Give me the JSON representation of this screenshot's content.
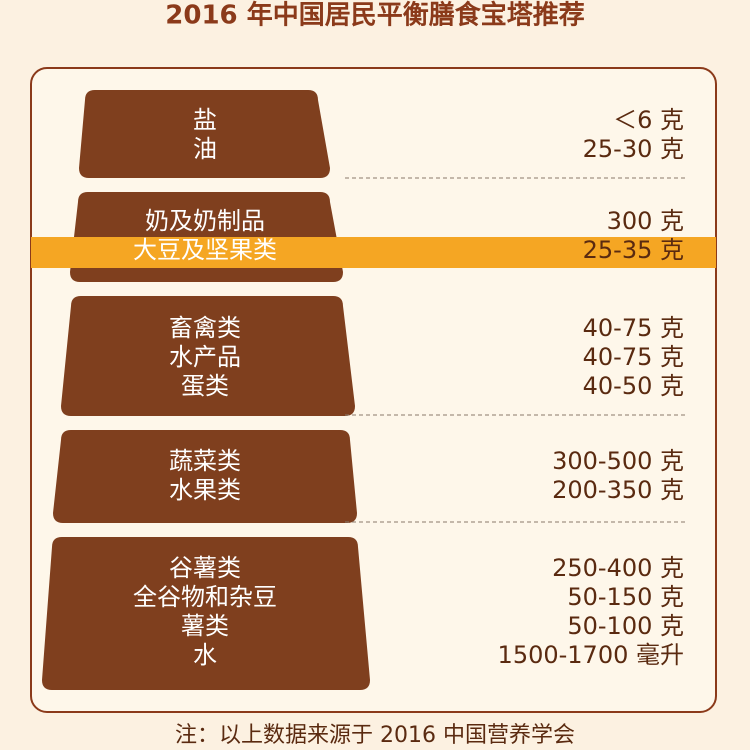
{
  "title": "2016 年中国居民平衡膳食宝塔推荐",
  "tiers": [
    {
      "items": [
        {
          "name": "盐",
          "amount": "＜6 克"
        },
        {
          "name": "油",
          "amount": "25-30 克"
        }
      ]
    },
    {
      "items": [
        {
          "name": "奶及奶制品",
          "amount": "300 克"
        },
        {
          "name": "大豆及坚果类",
          "amount": "25-35 克"
        }
      ]
    },
    {
      "items": [
        {
          "name": "畜禽类",
          "amount": "40-75 克"
        },
        {
          "name": "水产品",
          "amount": "40-75 克"
        },
        {
          "name": "蛋类",
          "amount": "40-50 克"
        }
      ]
    },
    {
      "items": [
        {
          "name": "蔬菜类",
          "amount": "300-500 克"
        },
        {
          "name": "水果类",
          "amount": "200-350 克"
        }
      ]
    },
    {
      "items": [
        {
          "name": "谷薯类",
          "amount": "250-400 克"
        },
        {
          "name": "全谷物和杂豆",
          "amount": "50-150 克"
        },
        {
          "name": "薯类",
          "amount": "50-100 克"
        },
        {
          "name": "水",
          "amount": "1500-1700 毫升"
        }
      ]
    }
  ],
  "footnote": "注：以上数据来源于 2016 中国营养学会"
}
